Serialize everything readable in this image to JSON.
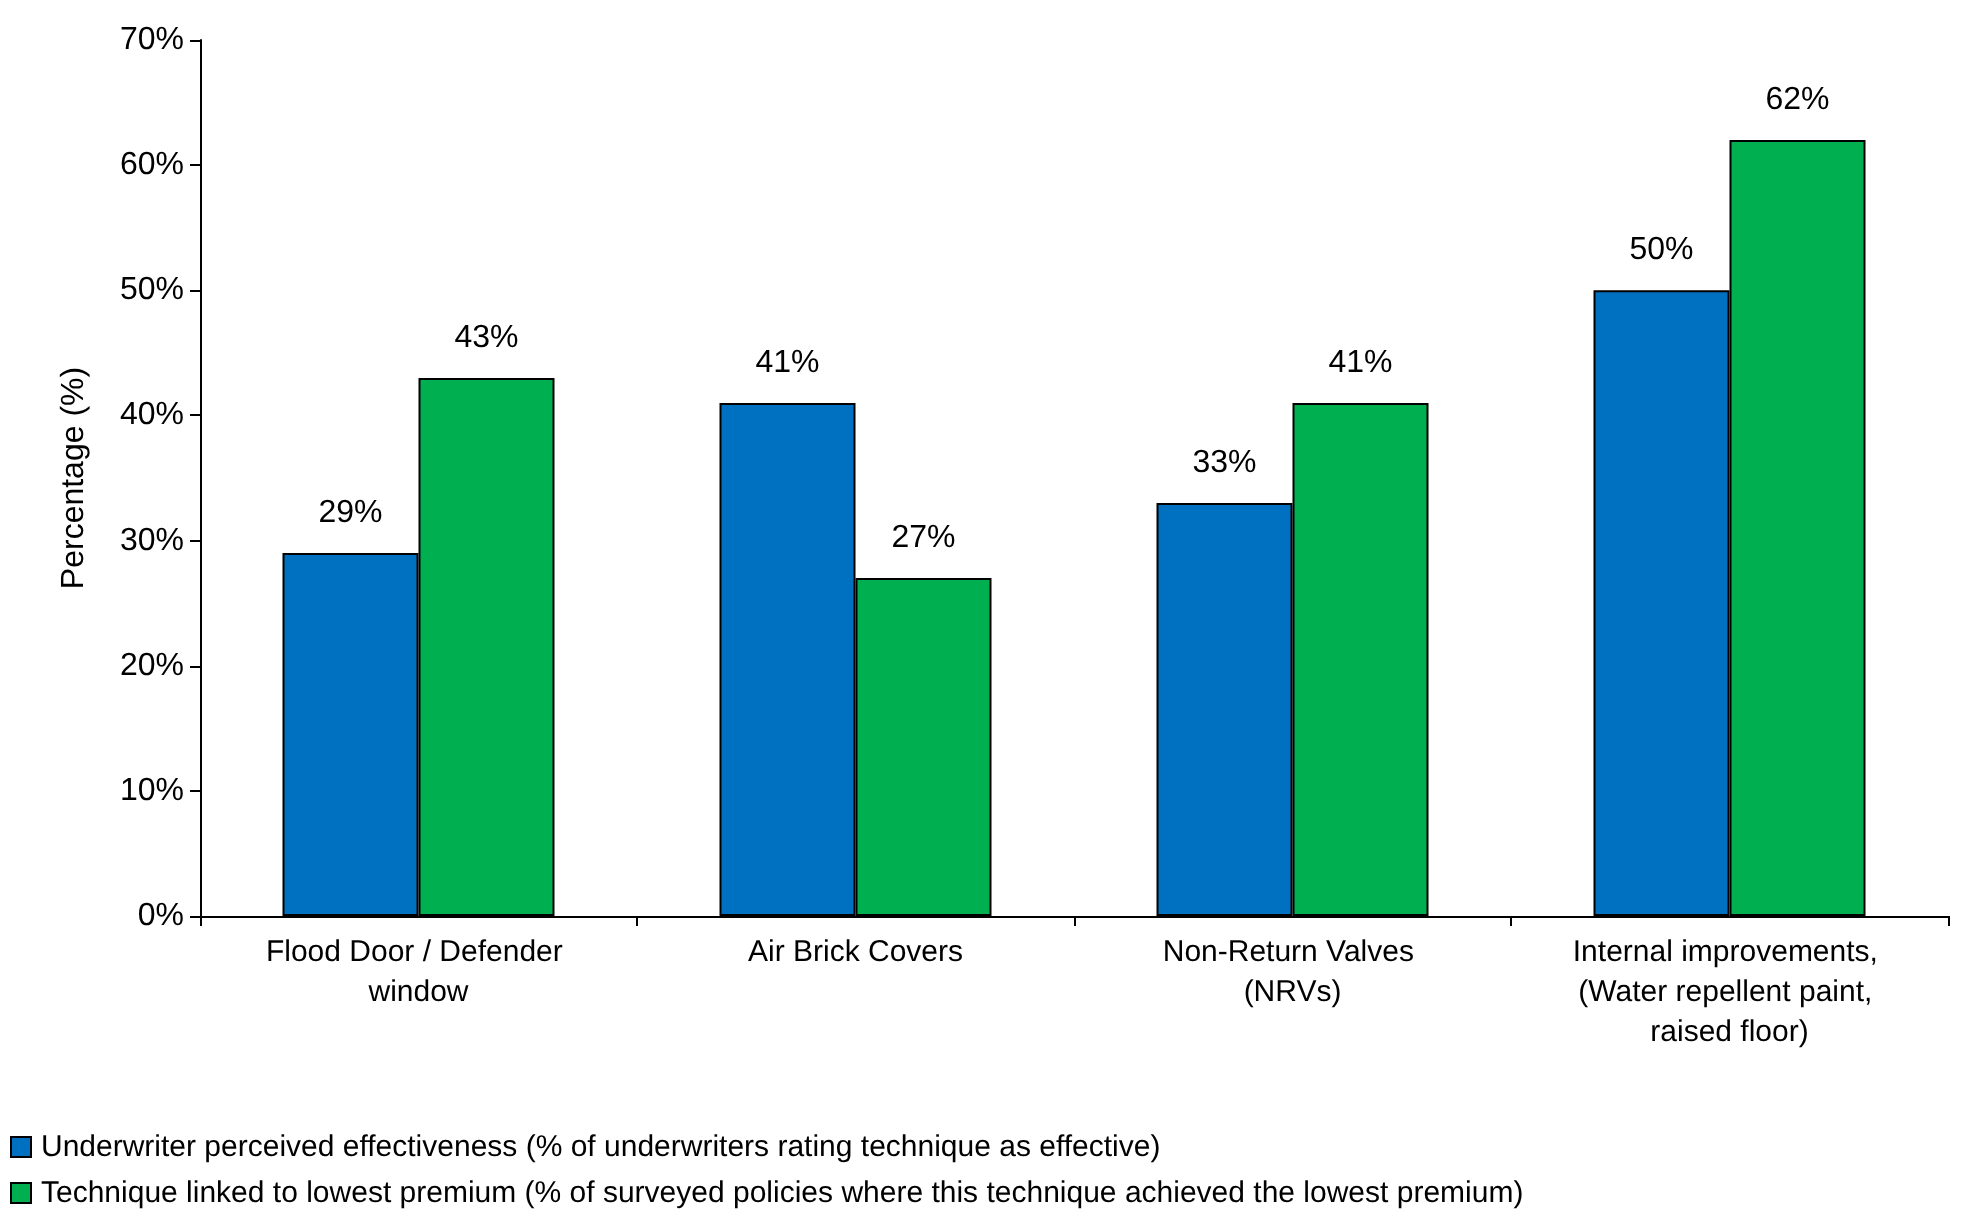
{
  "chart_data": {
    "type": "bar",
    "ylabel": "Percentage (%)",
    "categories": [
      "Flood Door / Defender window",
      "Air Brick Covers",
      "Non-Return Valves (NRVs)",
      "Internal improvements, (Water repellent paint, raised floor)"
    ],
    "series": [
      {
        "name": "Underwriter perceived effectiveness (% of underwriters rating technique as effective)",
        "color": "#0070c0",
        "values": [
          29,
          41,
          33,
          50
        ],
        "value_labels": [
          "29%",
          "41%",
          "33%",
          "50%"
        ]
      },
      {
        "name": "Technique linked to lowest premium (% of surveyed policies where this technique achieved the lowest premium)",
        "color": "#00b050",
        "values": [
          43,
          27,
          41,
          62
        ],
        "value_labels": [
          "43%",
          "27%",
          "41%",
          "62%"
        ]
      }
    ],
    "ylim": [
      0,
      70
    ],
    "yticks": [
      {
        "value": 0,
        "label": "0%"
      },
      {
        "value": 10,
        "label": "10%"
      },
      {
        "value": 20,
        "label": "20%"
      },
      {
        "value": 30,
        "label": "30%"
      },
      {
        "value": 40,
        "label": "40%"
      },
      {
        "value": 50,
        "label": "50%"
      },
      {
        "value": 60,
        "label": "60%"
      },
      {
        "value": 70,
        "label": "70%"
      }
    ],
    "grid": false,
    "legend": "bottom left"
  }
}
